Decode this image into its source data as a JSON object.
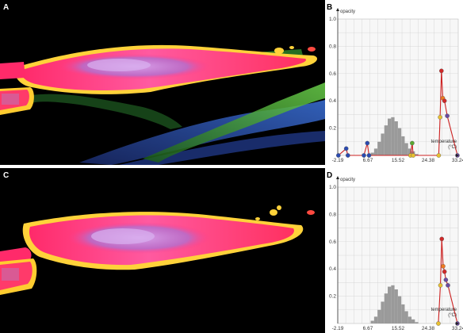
{
  "panels": {
    "a": {
      "letter": "A"
    },
    "b": {
      "letter": "B"
    },
    "c": {
      "letter": "C"
    },
    "d": {
      "letter": "D"
    }
  },
  "colors": {
    "grid": "#d0d0d0",
    "histogram": "#9a9a9a",
    "curve": "#cc2020",
    "node_blue": "#2a4ab0",
    "node_yellow": "#e8c030",
    "node_orange": "#f07a20",
    "node_red": "#d02828",
    "node_purple": "#6a4aa0",
    "node_green": "#5aa830"
  },
  "chart_data": [
    {
      "type": "area",
      "panel": "B",
      "ylabel": "opacity",
      "xlabel": "temperature",
      "xunit": "(°C)",
      "xlim": [
        -2.19,
        33.24
      ],
      "ylim": [
        0,
        1.0
      ],
      "xticks": [
        "-2.19",
        "6.67",
        "15.52",
        "24.38",
        "33.24"
      ],
      "yticks": [
        "0.2",
        "0.4",
        "0.6",
        "0.8",
        "1.0"
      ],
      "histogram": {
        "x": [
          8,
          9,
          10,
          11,
          12,
          13,
          14,
          15,
          16,
          17,
          18,
          19,
          20,
          21
        ],
        "height": [
          0.02,
          0.05,
          0.1,
          0.16,
          0.22,
          0.27,
          0.28,
          0.25,
          0.2,
          0.14,
          0.09,
          0.05,
          0.03,
          0.01
        ]
      },
      "transfer_function": {
        "x": [
          -2.0,
          0.3,
          0.8,
          5.5,
          6.5,
          7.0,
          19.2,
          19.7,
          20.0,
          27.5,
          27.9,
          28.3,
          28.7,
          29.2,
          30.0,
          33.0
        ],
        "y": [
          0.0,
          0.05,
          0.0,
          0.0,
          0.09,
          0.0,
          0.0,
          0.09,
          0.0,
          0.0,
          0.28,
          0.62,
          0.42,
          0.4,
          0.29,
          0.0
        ],
        "node_colors": [
          "blue",
          "blue",
          "blue",
          "blue",
          "blue",
          "blue",
          "yellow",
          "green",
          "yellow",
          "yellow",
          "yellow",
          "red",
          "orange",
          "red",
          "purple",
          "purple"
        ]
      }
    },
    {
      "type": "area",
      "panel": "D",
      "ylabel": "opacity",
      "xlabel": "temperature",
      "xunit": "(°C)",
      "xlim": [
        -2.19,
        33.24
      ],
      "ylim": [
        0,
        1.0
      ],
      "xticks": [
        "-2.19",
        "6.67",
        "15.52",
        "24.38",
        "33.24"
      ],
      "yticks": [
        "0.2",
        "0.4",
        "0.6",
        "0.8",
        "1.0"
      ],
      "histogram": {
        "x": [
          8,
          9,
          10,
          11,
          12,
          13,
          14,
          15,
          16,
          17,
          18,
          19,
          20,
          21
        ],
        "height": [
          0.02,
          0.05,
          0.1,
          0.16,
          0.22,
          0.27,
          0.28,
          0.25,
          0.2,
          0.14,
          0.09,
          0.05,
          0.03,
          0.01
        ]
      },
      "transfer_function": {
        "x": [
          27.4,
          28.0,
          28.4,
          28.8,
          29.2,
          29.6,
          30.2,
          33.0
        ],
        "y": [
          0.0,
          0.28,
          0.62,
          0.42,
          0.38,
          0.32,
          0.28,
          0.0
        ],
        "node_colors": [
          "yellow",
          "yellow",
          "red",
          "orange",
          "red",
          "purple",
          "purple",
          "purple"
        ]
      }
    }
  ]
}
